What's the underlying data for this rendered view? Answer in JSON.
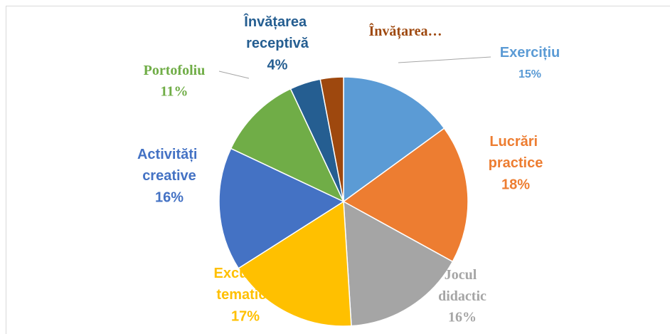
{
  "chart_data": {
    "type": "pie",
    "categories": [
      "Exercițiu",
      "Lucrări practice",
      "Jocul didactic",
      "Excursia tematică",
      "Activități creative",
      "Portofoliu",
      "Învățarea receptivă",
      "Învățarea…"
    ],
    "values": [
      15,
      18,
      16,
      17,
      16,
      11,
      4,
      3
    ],
    "value_labels": [
      "15%",
      "18%",
      "16%",
      "17%",
      "16%",
      "11%",
      "4%",
      null
    ],
    "colors": [
      "#5b9bd5",
      "#ed7d31",
      "#a5a5a5",
      "#ffc000",
      "#4472c4",
      "#70ad47",
      "#255e91",
      "#9e480e"
    ]
  }
}
